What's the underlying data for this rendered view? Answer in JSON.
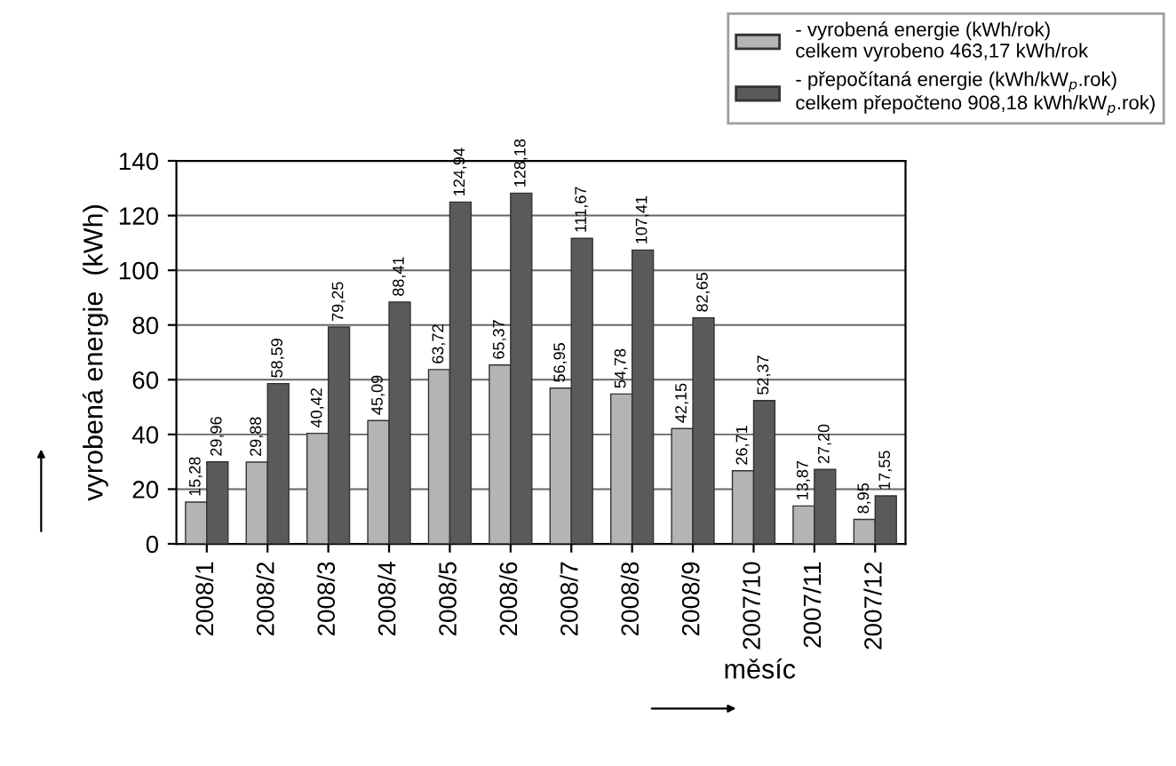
{
  "chart_data": {
    "type": "bar",
    "categories": [
      "2008/1",
      "2008/2",
      "2008/3",
      "2008/4",
      "2008/5",
      "2008/6",
      "2008/7",
      "2008/8",
      "2008/9",
      "2007/10",
      "2007/11",
      "2007/12"
    ],
    "xlabel": "měsíc",
    "ylabel": "vyrobená energie  (kWh)",
    "series": [
      {
        "name": "- vyrobená energie (kWh/rok)\ncelkem vyrobeno 463,17 kWh/rok",
        "color": "#b4b4b4",
        "values": [
          15.28,
          29.88,
          40.42,
          45.09,
          63.72,
          65.37,
          56.95,
          54.78,
          42.15,
          26.71,
          13.87,
          8.95
        ],
        "value_labels": [
          "15,28",
          "29,88",
          "40,42",
          "45,09",
          "63,72",
          "65,37",
          "56,95",
          "54,78",
          "42,15",
          "26,71",
          "13,87",
          "8,95"
        ]
      },
      {
        "name": "- přepočítaná energie (kWh/kW$_{p}$.rok)\ncelkem přepočteno 908,18 kWh/kW$_{p}$.rok)",
        "color": "#5a5a5a",
        "values": [
          29.96,
          58.59,
          79.25,
          88.41,
          124.94,
          128.18,
          111.67,
          107.41,
          82.65,
          52.37,
          27.2,
          17.55
        ],
        "value_labels": [
          "29,96",
          "58,59",
          "79,25",
          "88,41",
          "124,94",
          "128,18",
          "111,67",
          "107,41",
          "82,65",
          "52,37",
          "27,20",
          "17,55"
        ]
      }
    ],
    "ylim": [
      0,
      140
    ],
    "yticks": [
      0,
      20,
      40,
      60,
      80,
      100,
      120,
      140
    ],
    "grid": "y",
    "legend": "top right"
  }
}
